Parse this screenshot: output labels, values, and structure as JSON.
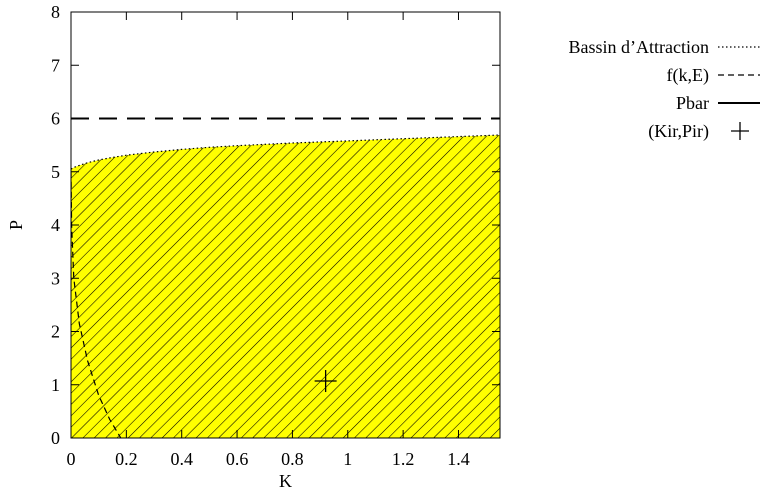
{
  "chart_data": {
    "type": "area",
    "title": "",
    "xlabel": "K",
    "ylabel": "P",
    "xlim": [
      0,
      1.55
    ],
    "ylim": [
      0,
      8
    ],
    "xticks": [
      0,
      0.2,
      0.4,
      0.6,
      0.8,
      1,
      1.2,
      1.4
    ],
    "xtick_labels": [
      "0",
      "0.2",
      "0.4",
      "0.6",
      "0.8",
      "1",
      "1.2",
      "1.4"
    ],
    "yticks": [
      0,
      1,
      2,
      3,
      4,
      5,
      6,
      7,
      8
    ],
    "ytick_labels": [
      "0",
      "1",
      "2",
      "3",
      "4",
      "5",
      "6",
      "7",
      "8"
    ],
    "legend_position": "outside-right",
    "series": [
      {
        "name": "Bassin d’Attraction",
        "style": "dotted boundary, yellow area with diagonal hatching",
        "fill_color": "#ffff00",
        "x": [
          0,
          0.01,
          0.03,
          0.06,
          0.1,
          0.15,
          0.2,
          0.3,
          0.4,
          0.5,
          0.6,
          0.8,
          1.0,
          1.2,
          1.4,
          1.55
        ],
        "y": [
          5.05,
          5.08,
          5.12,
          5.17,
          5.22,
          5.27,
          5.31,
          5.37,
          5.42,
          5.46,
          5.49,
          5.54,
          5.58,
          5.62,
          5.66,
          5.69
        ]
      },
      {
        "name": "f(k,E)",
        "style": "short dashed line",
        "x": [
          0,
          0.002,
          0.01,
          0.03,
          0.06,
          0.1,
          0.14,
          0.18
        ],
        "y": [
          5.0,
          4.0,
          3.0,
          2.15,
          1.45,
          0.8,
          0.35,
          0.0
        ]
      },
      {
        "name": "Pbar",
        "style": "long dashed line",
        "x": [
          0,
          1.55
        ],
        "y": [
          6,
          6
        ]
      },
      {
        "name": "(Kir,Pir)",
        "style": "plus marker",
        "x": [
          0.92
        ],
        "y": [
          1.07
        ]
      }
    ]
  }
}
